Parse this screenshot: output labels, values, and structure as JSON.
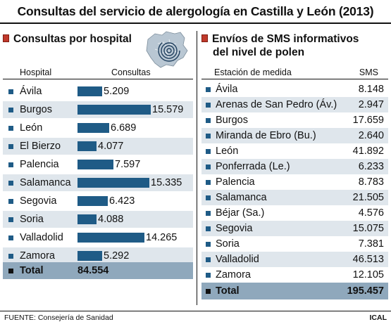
{
  "title": "Consultas del servicio de alergología en Castilla y León (2013)",
  "source": "FUENTE: Consejería de Sanidad",
  "credit": "ICAL",
  "colors": {
    "bar": "#1f5b86",
    "alt_row": "#dfe6ec",
    "total_row": "#8fa8bc",
    "marker": "#c0392b"
  },
  "chart_data": [
    {
      "type": "bar",
      "title": "Consultas por hospital",
      "xlabel": "Hospital",
      "ylabel": "Consultas",
      "categories": [
        "Ávila",
        "Burgos",
        "León",
        "El Bierzo",
        "Palencia",
        "Salamanca",
        "Segovia",
        "Soria",
        "Valladolid",
        "Zamora"
      ],
      "values": [
        5209,
        15579,
        6689,
        4077,
        7597,
        15335,
        6423,
        4088,
        14265,
        5292
      ],
      "value_labels": [
        "5.209",
        "15.579",
        "6.689",
        "4.077",
        "7.597",
        "15.335",
        "6.423",
        "4.088",
        "14.265",
        "5.292"
      ],
      "total_label": "Total",
      "total_value": "84.554"
    },
    {
      "type": "table",
      "title_line1": "Envíos de SMS informativos",
      "title_line2": "del nivel de polen",
      "xlabel": "Estación de medida",
      "ylabel": "SMS",
      "categories": [
        "Ávila",
        "Arenas de San Pedro (Áv.)",
        "Burgos",
        "Miranda de Ebro (Bu.)",
        "León",
        "Ponferrada (Le.)",
        "Palencia",
        "Salamanca",
        "Béjar (Sa.)",
        "Segovia",
        "Soria",
        "Valladolid",
        "Zamora"
      ],
      "values": [
        8148,
        2947,
        17659,
        2640,
        41892,
        6233,
        8783,
        21505,
        4576,
        15075,
        7381,
        46513,
        12105
      ],
      "value_labels": [
        "8.148",
        "2.947",
        "17.659",
        "2.640",
        "41.892",
        "6.233",
        "8.783",
        "21.505",
        "4.576",
        "15.075",
        "7.381",
        "46.513",
        "12.105"
      ],
      "total_label": "Total",
      "total_value": "195.457"
    }
  ]
}
